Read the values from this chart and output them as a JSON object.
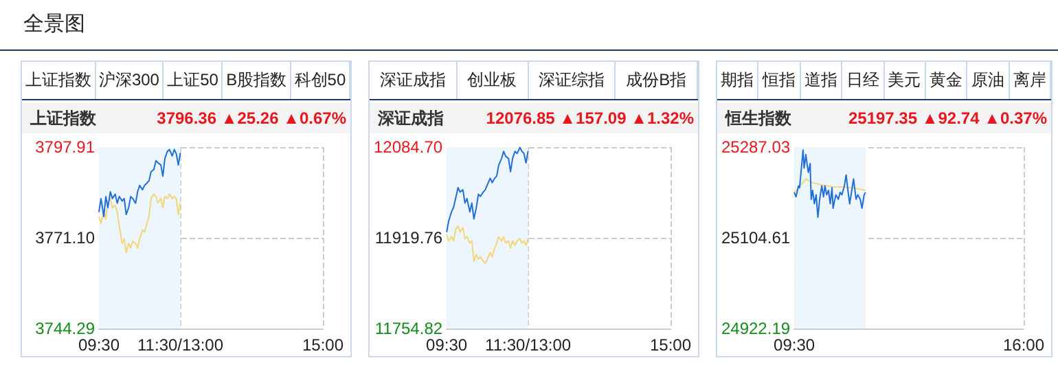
{
  "chart_data": [
    {
      "type": "other",
      "title": "全景图"
    },
    {
      "type": "line",
      "title": "上证指数",
      "subtitle": "3796.36 ▲25.26 ▲0.67%",
      "annotations": [
        "上证指数",
        "沪深300",
        "上证50",
        "B股指数",
        "科创50"
      ],
      "xlim": [
        9.5,
        15
      ],
      "xticks": [
        {
          "value": 9.5,
          "label": "09:30"
        },
        {
          "value": 11.5,
          "label": "11:30/13:00"
        },
        {
          "value": 15,
          "label": "15:00"
        }
      ],
      "ylim": [
        3744.29,
        3797.91
      ],
      "yticks": [
        {
          "value": 3744.29,
          "label": "3744.29"
        },
        {
          "value": 3771.1,
          "label": "3771.10"
        },
        {
          "value": 3797.91,
          "label": "3797.91"
        }
      ],
      "grid": true,
      "bands": [
        {
          "axis": "x",
          "from": 9.5,
          "to": 11.5,
          "color": "#eef6fd"
        }
      ],
      "series": [
        {
          "color": "#1f6fd6",
          "x": [
            9.5,
            9.55,
            9.62,
            9.67,
            9.72,
            9.78,
            9.83,
            9.9,
            9.95,
            10,
            10.07,
            10.12,
            10.17,
            10.23,
            10.28,
            10.33,
            10.4,
            10.45,
            10.5,
            10.57,
            10.62,
            10.68,
            10.73,
            10.78,
            10.85,
            10.9,
            10.95,
            11.02,
            11.07,
            11.12,
            11.18,
            11.23,
            11.3,
            11.35,
            11.4,
            11.45,
            11.5
          ],
          "values": [
            3778.7,
            3782.7,
            3777.4,
            3783.3,
            3780.0,
            3784.7,
            3782.7,
            3784.0,
            3781.3,
            3783.3,
            3782.0,
            3782.7,
            3778.0,
            3780.0,
            3783.3,
            3782.7,
            3781.3,
            3784.7,
            3786.6,
            3785.3,
            3786.6,
            3787.3,
            3788.0,
            3790.6,
            3791.3,
            3793.9,
            3793.3,
            3792.6,
            3789.3,
            3794.6,
            3796.6,
            3797.2,
            3795.3,
            3797.2,
            3795.9,
            3792.6,
            3796.2
          ]
        },
        {
          "color": "#f3d57c",
          "x": [
            9.5,
            9.55,
            9.62,
            9.67,
            9.72,
            9.78,
            9.83,
            9.9,
            9.95,
            10,
            10.07,
            10.12,
            10.17,
            10.23,
            10.28,
            10.33,
            10.4,
            10.45,
            10.5,
            10.57,
            10.62,
            10.68,
            10.73,
            10.78,
            10.85,
            10.9,
            10.95,
            11.02,
            11.07,
            11.12,
            11.18,
            11.23,
            11.3,
            11.35,
            11.4,
            11.45,
            11.5
          ],
          "values": [
            3777.4,
            3775.4,
            3778.7,
            3776.7,
            3781.4,
            3782.7,
            3780.0,
            3780.7,
            3778.7,
            3774.7,
            3769.4,
            3770.8,
            3766.8,
            3769.4,
            3768.1,
            3770.1,
            3769.4,
            3768.1,
            3770.8,
            3773.4,
            3772.8,
            3775.4,
            3777.4,
            3782.7,
            3784.0,
            3783.3,
            3781.4,
            3782.7,
            3780.0,
            3783.3,
            3782.7,
            3784.0,
            3782.7,
            3783.3,
            3782.7,
            3778.0,
            3781.4
          ]
        }
      ]
    },
    {
      "type": "line",
      "title": "深证成指",
      "subtitle": "12076.85 ▲157.09 ▲1.32%",
      "annotations": [
        "深证成指",
        "创业板",
        "深证综指",
        "成份B指"
      ],
      "xlim": [
        9.5,
        15
      ],
      "xticks": [
        {
          "value": 9.5,
          "label": "09:30"
        },
        {
          "value": 11.5,
          "label": "11:30/13:00"
        },
        {
          "value": 15,
          "label": "15:00"
        }
      ],
      "ylim": [
        11754.82,
        12084.7
      ],
      "yticks": [
        {
          "value": 11754.82,
          "label": "11754.82"
        },
        {
          "value": 11919.76,
          "label": "11919.76"
        },
        {
          "value": 12084.7,
          "label": "12084.70"
        }
      ],
      "grid": true,
      "bands": [
        {
          "axis": "x",
          "from": 9.5,
          "to": 11.5,
          "color": "#eef6fd"
        }
      ],
      "series": [
        {
          "color": "#1f6fd6",
          "x": [
            9.5,
            9.55,
            9.62,
            9.67,
            9.72,
            9.78,
            9.83,
            9.9,
            9.95,
            10,
            10.07,
            10.12,
            10.17,
            10.23,
            10.28,
            10.33,
            10.4,
            10.45,
            10.5,
            10.57,
            10.62,
            10.68,
            10.73,
            10.78,
            10.85,
            10.9,
            10.95,
            11.02,
            11.07,
            11.12,
            11.18,
            11.23,
            11.3,
            11.35,
            11.4,
            11.45,
            11.5
          ],
          "values": [
            11930,
            11950,
            11967,
            11975,
            11991,
            12011,
            12003,
            12007,
            11983,
            11991,
            11967,
            11983,
            11954,
            11975,
            11999,
            11995,
            12003,
            12007,
            12016,
            12028,
            12020,
            12028,
            12032,
            12052,
            12064,
            12077,
            12068,
            12064,
            12040,
            12064,
            12077,
            12073,
            12084,
            12077,
            12073,
            12056,
            12077
          ]
        },
        {
          "color": "#f3d57c",
          "x": [
            9.5,
            9.55,
            9.62,
            9.67,
            9.72,
            9.78,
            9.83,
            9.9,
            9.95,
            10,
            10.07,
            10.12,
            10.17,
            10.23,
            10.28,
            10.33,
            10.4,
            10.45,
            10.5,
            10.57,
            10.62,
            10.68,
            10.73,
            10.78,
            10.85,
            10.9,
            10.95,
            11.02,
            11.07,
            11.12,
            11.18,
            11.23,
            11.3,
            11.35,
            11.4,
            11.45,
            11.5
          ],
          "values": [
            11926,
            11914,
            11922,
            11914,
            11934,
            11942,
            11930,
            11938,
            11918,
            11922,
            11910,
            11914,
            11877,
            11889,
            11881,
            11885,
            11877,
            11873,
            11881,
            11893,
            11885,
            11901,
            11910,
            11922,
            11914,
            11922,
            11910,
            11914,
            11901,
            11914,
            11906,
            11914,
            11918,
            11910,
            11914,
            11906,
            11918
          ]
        }
      ]
    },
    {
      "type": "line",
      "title": "恒生指数",
      "subtitle": "25197.35 ▲92.74 ▲0.37%",
      "annotations": [
        "期指",
        "恒指",
        "道指",
        "日经",
        "美元",
        "黄金",
        "原油",
        "离岸"
      ],
      "xlim": [
        9.5,
        16
      ],
      "xticks": [
        {
          "value": 9.5,
          "label": "09:30"
        },
        {
          "value": 16,
          "label": "16:00"
        }
      ],
      "ylim": [
        24922.19,
        25287.03
      ],
      "yticks": [
        {
          "value": 24922.19,
          "label": "24922.19"
        },
        {
          "value": 25104.61,
          "label": "25104.61"
        },
        {
          "value": 25287.03,
          "label": "25287.03"
        }
      ],
      "grid": true,
      "bands": [
        {
          "axis": "x",
          "from": 9.5,
          "to": 11.52,
          "color": "#eef6fd"
        }
      ],
      "series": [
        {
          "color": "#1f6fd6",
          "x": [
            9.5,
            9.55,
            9.62,
            9.65,
            9.72,
            9.75,
            9.78,
            9.83,
            9.87,
            9.9,
            9.95,
            9.98,
            10.02,
            10.07,
            10.12,
            10.17,
            10.22,
            10.28,
            10.33,
            10.37,
            10.42,
            10.47,
            10.52,
            10.57,
            10.6,
            10.65,
            10.68,
            10.75,
            10.8,
            10.85,
            10.92,
            10.97,
            11.02,
            11.07,
            11.13,
            11.18,
            11.25,
            11.3,
            11.37,
            11.42,
            11.48,
            11.52
          ],
          "values": [
            25196,
            25187,
            25209,
            25205,
            25258,
            25281,
            25245,
            25272,
            25249,
            25236,
            25254,
            25182,
            25200,
            25173,
            25191,
            25146,
            25182,
            25209,
            25187,
            25209,
            25191,
            25200,
            25173,
            25205,
            25164,
            25182,
            25191,
            25182,
            25196,
            25191,
            25209,
            25231,
            25200,
            25173,
            25200,
            25223,
            25182,
            25191,
            25182,
            25164,
            25191,
            25196
          ]
        },
        {
          "color": "#f3d57c",
          "x": [
            9.5,
            9.67,
            9.83,
            9.98,
            10.28,
            10.6,
            10.92,
            11.25,
            11.52
          ],
          "values": [
            25196,
            25209,
            25223,
            25216,
            25211,
            25207,
            25207,
            25204,
            25200
          ]
        }
      ]
    }
  ]
}
